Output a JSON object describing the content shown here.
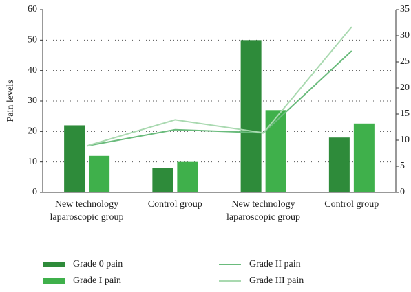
{
  "chart_data": {
    "type": "bar_line",
    "y_label": "Pain levels",
    "categories": [
      "New technology laparoscopic group",
      "Control group",
      "New technology laparoscopic group",
      "Control group"
    ],
    "ylim": [
      0,
      60
    ],
    "yticks": [
      0,
      10,
      20,
      30,
      40,
      50,
      60
    ],
    "y2lim": [
      0,
      35
    ],
    "y2ticks": [
      0,
      5,
      10,
      15,
      20,
      25,
      30,
      35
    ],
    "grid": true,
    "series": [
      {
        "name": "Grade 0 pain",
        "type": "bar",
        "color": "#2e8b3a",
        "values": [
          22,
          8,
          50,
          18
        ]
      },
      {
        "name": "Grade I pain",
        "type": "bar",
        "color": "#3fb04b",
        "values": [
          12,
          10,
          27,
          22.6
        ]
      },
      {
        "name": "Grade II pain",
        "type": "line",
        "axis": "y2",
        "color": "#6abb7c",
        "values": [
          8.9,
          12,
          11.4,
          27.1
        ]
      },
      {
        "name": "Grade III pain",
        "type": "line",
        "axis": "y2",
        "color": "#a9d9b0",
        "values": [
          8.9,
          13.9,
          11.4,
          31.7
        ]
      }
    ]
  }
}
